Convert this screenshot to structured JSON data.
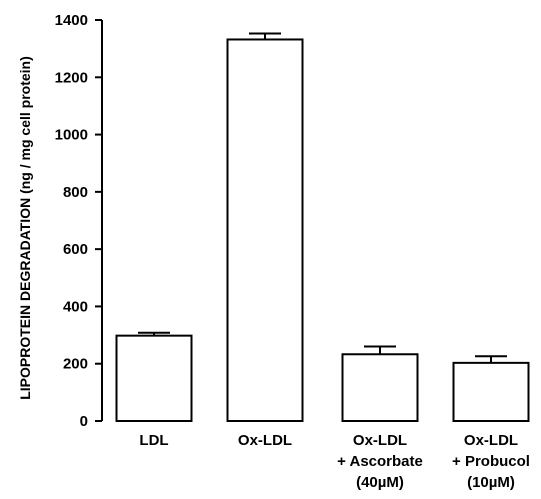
{
  "chart_data": {
    "type": "bar",
    "title": "",
    "xlabel": "",
    "ylabel": "LIPOPROTEIN DEGRADATION (ng / mg cell protein)",
    "ylim": [
      0,
      1400
    ],
    "yticks": [
      0,
      200,
      400,
      600,
      800,
      1000,
      1200,
      1400
    ],
    "categories": [
      [
        "LDL"
      ],
      [
        "Ox-LDL"
      ],
      [
        "Ox-LDL",
        "+ Ascorbate",
        "(40µM)"
      ],
      [
        "Ox-LDL",
        "+ Probucol",
        "(10µM)"
      ]
    ],
    "values": [
      298,
      1332,
      233,
      203
    ],
    "error_upper": [
      308,
      1353,
      260,
      226
    ],
    "grid": false,
    "colors": {
      "bar_fill": "#ffffff",
      "stroke": "#000000"
    }
  }
}
